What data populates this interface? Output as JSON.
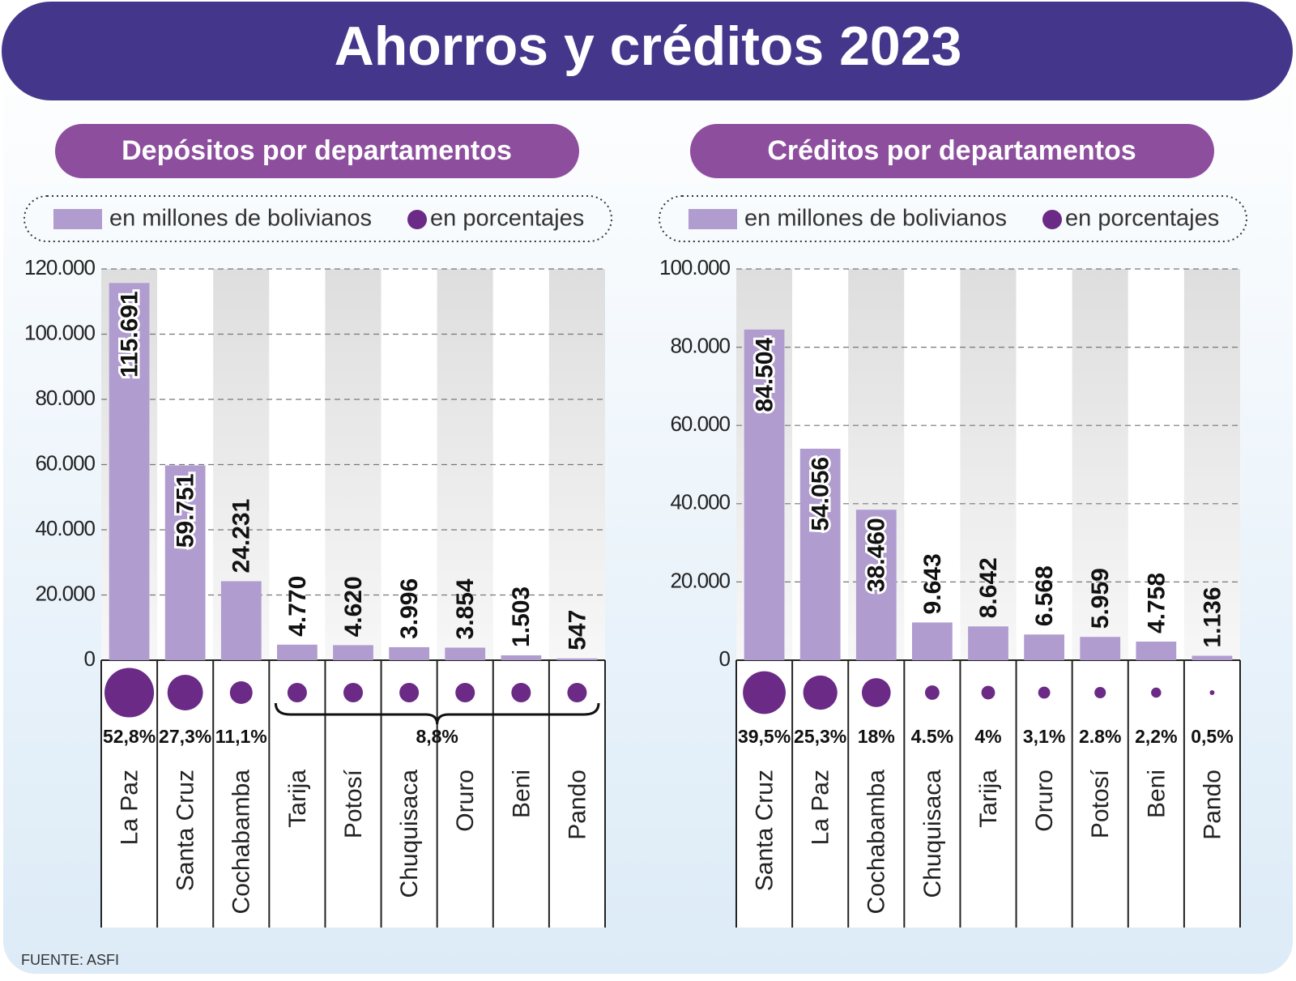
{
  "title": "Ahorros y créditos 2023",
  "source": "FUENTE: ASFI",
  "chart_data": [
    {
      "type": "bar",
      "title": "Depósitos por departamentos",
      "legend": {
        "bars": "en millones de bolivianos",
        "dots": "en porcentajes"
      },
      "categories": [
        "La Paz",
        "Santa Cruz",
        "Cochabamba",
        "Tarija",
        "Potosí",
        "Chuquisaca",
        "Oruro",
        "Beni",
        "Pando"
      ],
      "values": [
        115691,
        59751,
        24231,
        4770,
        4620,
        3996,
        3854,
        1503,
        547
      ],
      "value_labels": [
        "115.691",
        "59.751",
        "24.231",
        "4.770",
        "4.620",
        "3.996",
        "3.854",
        "1.503",
        "547"
      ],
      "percentages": [
        52.8,
        27.3,
        11.1,
        null,
        null,
        null,
        null,
        null,
        null
      ],
      "percentage_labels": [
        "52,8%",
        "27,3%",
        "11,1%",
        null,
        null,
        null,
        null,
        null,
        null
      ],
      "group_percentage": 8.8,
      "group_percentage_label": "8,8%",
      "color": "#b09ccf",
      "dot_color": "#6a2a86",
      "ylim": [
        0,
        120000
      ],
      "yticks": [
        0,
        {
          "value": 20000,
          "label": "20.000"
        },
        {
          "value": 40000,
          "label": "40.000"
        },
        {
          "value": 60000,
          "label": "60.000"
        },
        {
          "value": 80000,
          "label": "80.000"
        },
        {
          "value": 100000,
          "label": "100.000"
        },
        {
          "value": 120000,
          "label": "120.000"
        }
      ],
      "grid": true
    },
    {
      "type": "bar",
      "title": "Créditos por departamentos",
      "legend": {
        "bars": "en millones de bolivianos",
        "dots": "en porcentajes"
      },
      "categories": [
        "Santa Cruz",
        "La Paz",
        "Cochabamba",
        "Chuquisaca",
        "Tarija",
        "Oruro",
        "Potosí",
        "Beni",
        "Pando"
      ],
      "values": [
        84504,
        54056,
        38460,
        9643,
        8642,
        6568,
        5959,
        4758,
        1136
      ],
      "value_labels": [
        "84.504",
        "54.056",
        "38.460",
        "9.643",
        "8.642",
        "6.568",
        "5.959",
        "4.758",
        "1.136"
      ],
      "percentages": [
        39.5,
        25.3,
        18,
        4.5,
        4,
        3.1,
        2.8,
        2.2,
        0.5
      ],
      "percentage_labels": [
        "39,5%",
        "25,3%",
        "18%",
        "4.5%",
        "4%",
        "3,1%",
        "2.8%",
        "2,2%",
        "0,5%"
      ],
      "color": "#b09ccf",
      "dot_color": "#6a2a86",
      "ylim": [
        0,
        100000
      ],
      "yticks": [
        0,
        {
          "value": 20000,
          "label": "20.000"
        },
        {
          "value": 40000,
          "label": "40.000"
        },
        {
          "value": 60000,
          "label": "60.000"
        },
        {
          "value": 80000,
          "label": "80.000"
        },
        {
          "value": 100000,
          "label": "100.000"
        }
      ],
      "grid": true
    }
  ]
}
